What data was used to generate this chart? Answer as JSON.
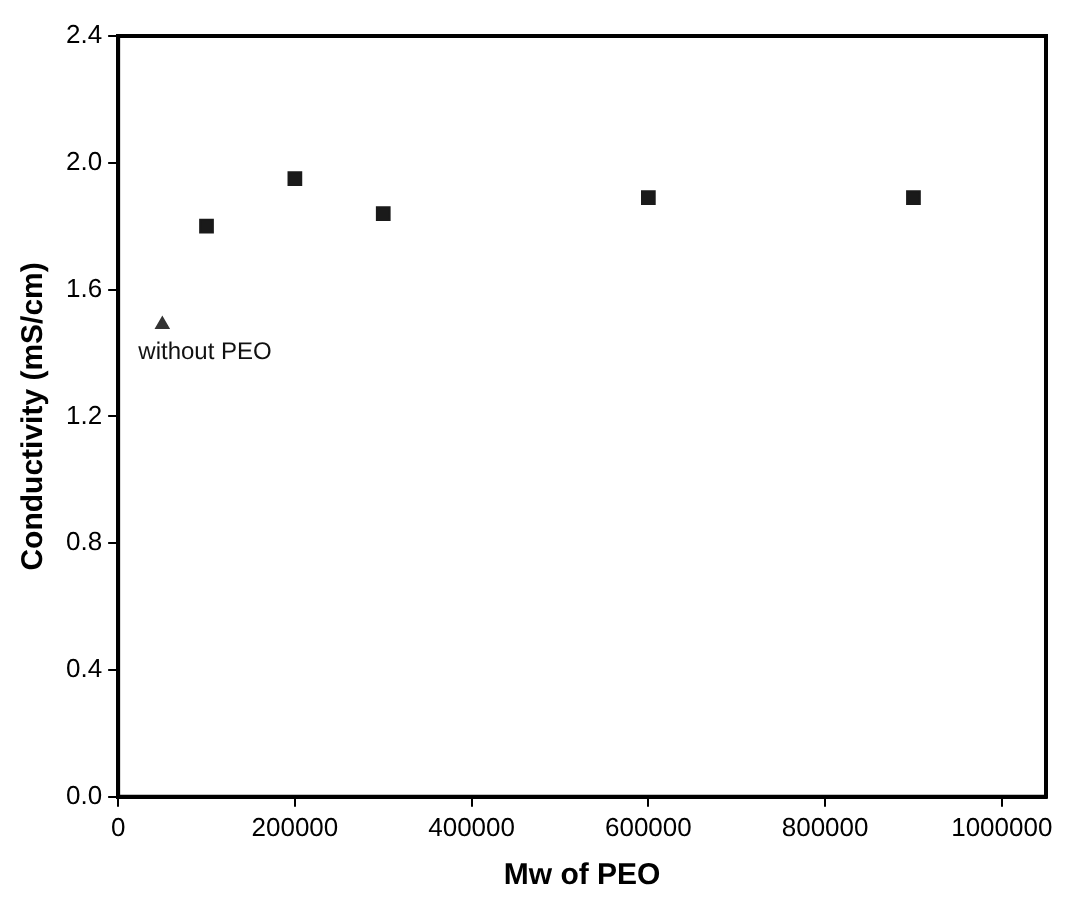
{
  "chart_data": {
    "type": "scatter",
    "xlabel": "Mw of PEO",
    "ylabel": "Conductivity (mS/cm)",
    "xlim": [
      0,
      1050000
    ],
    "xticks": [
      0,
      200000,
      400000,
      600000,
      800000,
      1000000
    ],
    "ylim": [
      0,
      2.4
    ],
    "yticks": [
      {
        "value": 0,
        "label": "0.0"
      },
      0.4,
      0.8,
      1.2,
      1.6,
      {
        "value": 2,
        "label": "2.0"
      },
      2.4
    ],
    "grid": false,
    "legend": false,
    "series": [
      {
        "color": "#1a1a1a",
        "marker": "square",
        "x": [
          100000,
          200000,
          300000,
          600000,
          900000
        ],
        "values": [
          1.8,
          1.95,
          1.84,
          1.89,
          1.89
        ]
      },
      {
        "name": "without PEO",
        "color": "#333333",
        "marker": "triangle",
        "x": [
          50000
        ],
        "values": [
          1.49
        ]
      }
    ]
  }
}
